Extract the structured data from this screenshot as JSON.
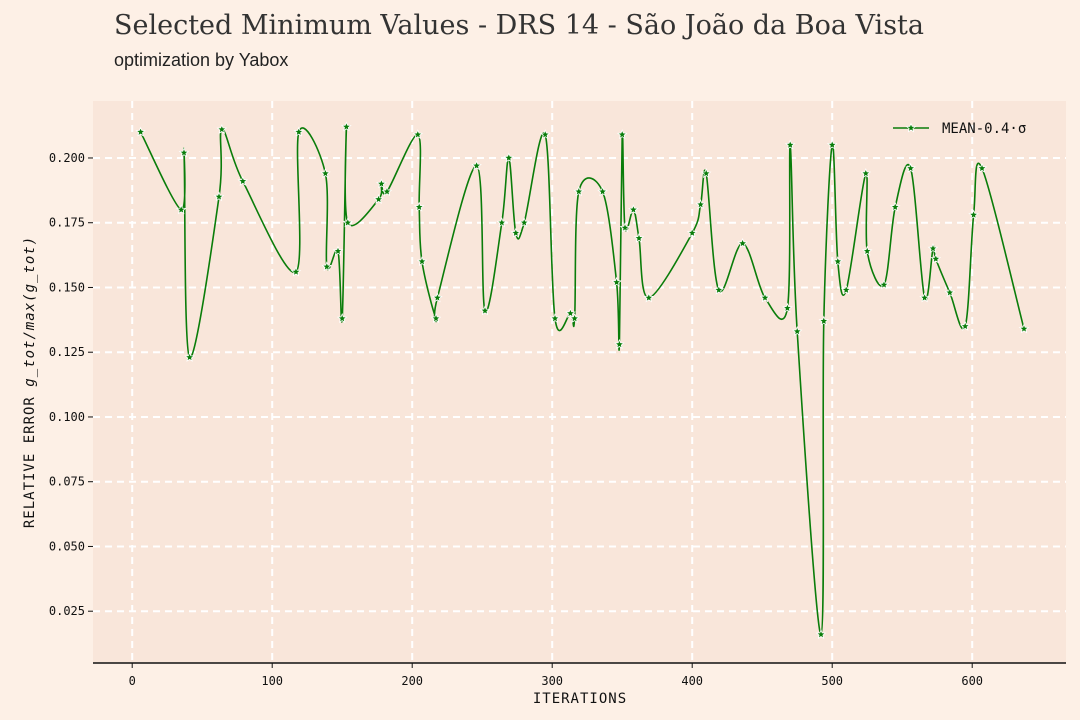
{
  "header": {
    "title": "Selected Minimum Values - DRS 14 - São João da Boa Vista",
    "subtitle": "optimization by Yabox"
  },
  "colors": {
    "background": "#fdf0e6",
    "plot_background": "#f9e6da",
    "grid": "#ffffff",
    "series": "#0a7d0a"
  },
  "chart_data": {
    "type": "line",
    "xlabel": "ITERATIONS",
    "ylabel_main": "RELATIVE ERROR ",
    "ylabel_math": "g_tot/max(g_tot)",
    "xlim": [
      -28,
      667
    ],
    "ylim": [
      0.005,
      0.222
    ],
    "xticks": [
      0,
      100,
      200,
      300,
      400,
      500,
      600
    ],
    "yticks": [
      0.025,
      0.05,
      0.075,
      0.1,
      0.125,
      0.15,
      0.175,
      0.2
    ],
    "ytick_labels": [
      "0.025",
      "0.050",
      "0.075",
      "0.100",
      "0.125",
      "0.150",
      "0.175",
      "0.200"
    ],
    "grid": true,
    "legend_position": "top-right",
    "series": [
      {
        "name": "MEAN-0.4·σ",
        "marker": "star",
        "x": [
          6,
          35,
          37,
          41,
          62,
          64,
          79,
          117,
          119,
          138,
          139,
          147,
          150,
          153,
          154,
          176,
          178,
          182,
          204,
          205,
          207,
          217,
          218,
          246,
          252,
          264,
          269,
          274,
          280,
          295,
          302,
          313,
          316,
          319,
          336,
          346,
          348,
          350,
          352,
          358,
          362,
          369,
          400,
          406,
          410,
          419,
          436,
          452,
          468,
          470,
          475,
          492,
          494,
          500,
          504,
          510,
          524,
          525,
          537,
          545,
          556,
          566,
          572,
          574,
          584,
          595,
          601,
          607,
          637
        ],
        "y": [
          0.21,
          0.18,
          0.202,
          0.123,
          0.185,
          0.211,
          0.191,
          0.156,
          0.21,
          0.194,
          0.158,
          0.164,
          0.138,
          0.212,
          0.175,
          0.184,
          0.19,
          0.187,
          0.209,
          0.181,
          0.16,
          0.138,
          0.146,
          0.197,
          0.141,
          0.175,
          0.2,
          0.171,
          0.175,
          0.209,
          0.138,
          0.14,
          0.138,
          0.187,
          0.187,
          0.152,
          0.128,
          0.209,
          0.173,
          0.18,
          0.169,
          0.146,
          0.171,
          0.182,
          0.194,
          0.149,
          0.167,
          0.146,
          0.142,
          0.205,
          0.133,
          0.016,
          0.137,
          0.205,
          0.16,
          0.149,
          0.194,
          0.164,
          0.151,
          0.181,
          0.196,
          0.146,
          0.165,
          0.161,
          0.148,
          0.135,
          0.178,
          0.196,
          0.134
        ]
      }
    ]
  }
}
